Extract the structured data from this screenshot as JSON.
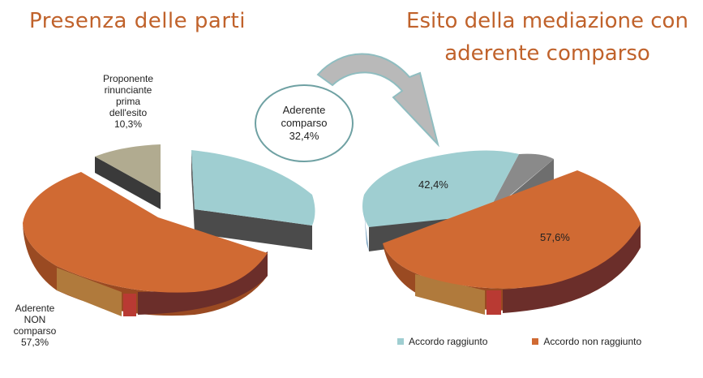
{
  "titles": {
    "left": "Presenza delle parti",
    "right_line1": "Esito della mediazione con",
    "right_line2": "aderente comparso"
  },
  "chart_data": [
    {
      "type": "pie",
      "slices": [
        {
          "label_lines": [
            "Proponente",
            "rinunciante",
            "prima",
            "dell'esito"
          ],
          "value": 10.3,
          "value_label": "10,3%",
          "color": "#b1ab90"
        },
        {
          "label_lines": [
            "Aderente",
            "comparso"
          ],
          "value": 32.4,
          "value_label": "32,4%",
          "color": "#9fced1"
        },
        {
          "label_lines": [
            "Aderente",
            "NON",
            "comparso"
          ],
          "value": 57.3,
          "value_label": "57,3%",
          "color": "#d06a33"
        }
      ]
    },
    {
      "type": "pie",
      "slices": [
        {
          "label": "Accordo raggiunto",
          "value": 42.4,
          "value_label": "42,4%",
          "color": "#9fced1"
        },
        {
          "label": "Accordo non raggiunto",
          "value": 57.6,
          "value_label": "57,6%",
          "color": "#d06a33"
        }
      ],
      "legend": "bottom"
    }
  ]
}
